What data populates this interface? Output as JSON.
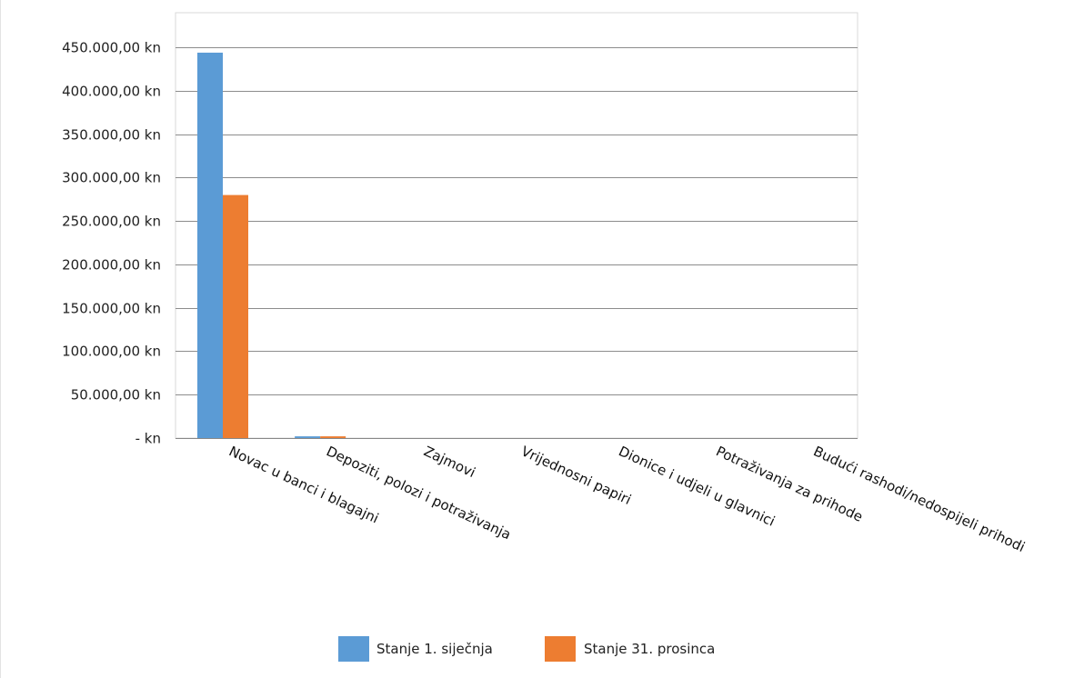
{
  "chart_data": {
    "type": "bar",
    "title": "",
    "xlabel": "",
    "ylabel": "",
    "categories": [
      "Novac u banci i blagajni",
      "Depoziti, polozi i potraživanja",
      "Zajmovi",
      "Vrijednosni papiri",
      "Dionice i udjeli u glavnici",
      "Potraživanja za prihode",
      "Budući rashodi/nedospijeli prihodi"
    ],
    "series": [
      {
        "name": "Stanje 1. siječnja",
        "color": "#5b9bd5",
        "values": [
          444000,
          2000,
          0,
          0,
          0,
          0,
          0
        ]
      },
      {
        "name": "Stanje 31. prosinca",
        "color": "#ed7d31",
        "values": [
          280000,
          2000,
          0,
          0,
          0,
          0,
          0
        ]
      }
    ],
    "ylim": [
      0,
      490000
    ],
    "y_ticks": [
      {
        "value": 0,
        "label": "-   kn"
      },
      {
        "value": 50000,
        "label": "50.000,00 kn"
      },
      {
        "value": 100000,
        "label": "100.000,00 kn"
      },
      {
        "value": 150000,
        "label": "150.000,00 kn"
      },
      {
        "value": 200000,
        "label": "200.000,00 kn"
      },
      {
        "value": 250000,
        "label": "250.000,00 kn"
      },
      {
        "value": 300000,
        "label": "300.000,00 kn"
      },
      {
        "value": 350000,
        "label": "350.000,00 kn"
      },
      {
        "value": 400000,
        "label": "400.000,00 kn"
      },
      {
        "value": 450000,
        "label": "450.000,00 kn"
      }
    ],
    "grid": true,
    "legend_position": "bottom"
  }
}
